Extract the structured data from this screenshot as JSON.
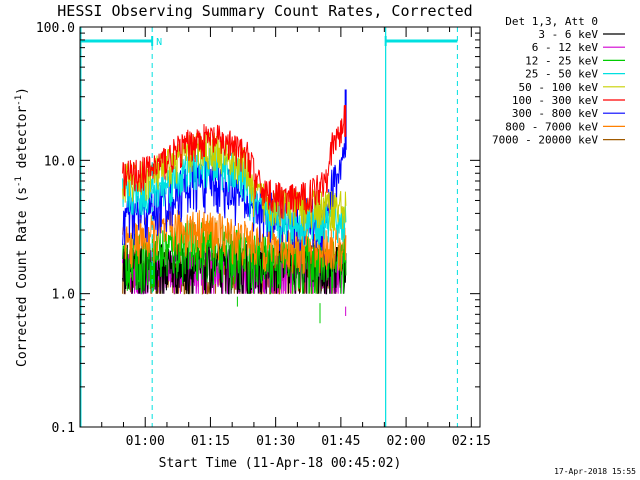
{
  "chart_data": {
    "type": "line",
    "title": "HESSI Observing Summary Count Rates, Corrected",
    "xlabel": "Start Time (11-Apr-18 00:45:02)",
    "ylabel": "Corrected Count Rate (s",
    "ylabel_sup": "-1",
    "ylabel_rest": " detector",
    "ylabel_sup2": "-1",
    "ylabel_end": ")",
    "y_scale": "log",
    "ylim": [
      0.1,
      100.0
    ],
    "y_ticks": [
      "0.1",
      "1.0",
      "10.0",
      "100.0"
    ],
    "xlim_minutes": [
      0,
      92
    ],
    "x_ticks": [
      {
        "label": "01:00",
        "t": 15
      },
      {
        "label": "01:15",
        "t": 30
      },
      {
        "label": "01:30",
        "t": 45
      },
      {
        "label": "01:45",
        "t": 60
      },
      {
        "label": "02:00",
        "t": 75
      },
      {
        "label": "02:15",
        "t": 90
      }
    ],
    "legend_header": "Det 1,3, Att 0",
    "legend_position": "right",
    "series": [
      {
        "name": "3 - 6 keV",
        "color": "#000000"
      },
      {
        "name": "6 - 12 keV",
        "color": "#d000d0"
      },
      {
        "name": "12 - 25 keV",
        "color": "#00cc00"
      },
      {
        "name": "25 - 50 keV",
        "color": "#00e0e0"
      },
      {
        "name": "50 - 100 keV",
        "color": "#c8d000"
      },
      {
        "name": "100 - 300 keV",
        "color": "#ff0000"
      },
      {
        "name": "300 - 800 keV",
        "color": "#0000ff"
      },
      {
        "name": "800 - 7000 keV",
        "color": "#ff8000"
      },
      {
        "name": "7000 - 20000 keV",
        "color": "#a05a00"
      }
    ],
    "annotations": {
      "night_marker": "N",
      "timestamp": "17-Apr-2018 15:55"
    }
  }
}
